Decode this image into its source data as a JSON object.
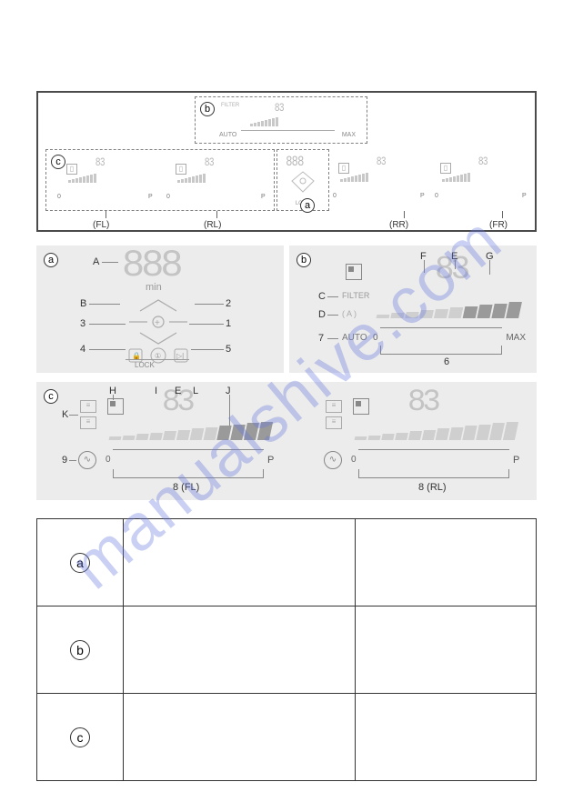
{
  "watermark": "manualshive.com",
  "main_diagram": {
    "labels": {
      "a": "a",
      "b": "b",
      "c": "c"
    },
    "positions": {
      "fl": "(FL)",
      "rl": "(RL)",
      "rr": "(RR)",
      "fr": "(FR)"
    },
    "box_b": {
      "filter": "FILTER",
      "auto": "AUTO",
      "seg": "83",
      "max": "MAX"
    },
    "box_c": {
      "seg1": "83",
      "seg2": "83",
      "p": "P",
      "zero": "0"
    },
    "box_a": {
      "seg": "888",
      "lock": "LOCK"
    },
    "right": {
      "seg1": "83",
      "seg2": "83",
      "p": "P",
      "zero": "0"
    }
  },
  "panel_a": {
    "label": "a",
    "seg": "888",
    "min": "min",
    "lock": "LOCK",
    "callouts": {
      "A": "A",
      "B": "B",
      "1": "1",
      "2": "2",
      "3": "3",
      "4": "4",
      "5": "5"
    }
  },
  "panel_b": {
    "label": "b",
    "seg": "83",
    "filter": "FILTER",
    "auto": "AUTO",
    "max": "MAX",
    "callouts": {
      "C": "C",
      "D": "D",
      "E": "E",
      "F": "F",
      "G": "G",
      "6": "6",
      "7": "7"
    },
    "d_note": "( A )",
    "zero": "0",
    "bars": {
      "count": 10,
      "dark_from": 6,
      "color_light": "#cfcfcf",
      "color_dark": "#9a9a9a",
      "min_h": 4,
      "max_h": 18,
      "width": 14
    }
  },
  "panel_c": {
    "label": "c",
    "seg_l": "83",
    "seg_r": "83",
    "p": "P",
    "zero": "0",
    "sub_fl": "8 (FL)",
    "sub_rl": "8 (RL)",
    "callouts": {
      "H": "H",
      "I": "I",
      "E": "E",
      "L": "L",
      "J": "J",
      "K": "K",
      "9": "9"
    },
    "bars_l": {
      "count": 12,
      "dark_from": 8,
      "color_light": "#cfcfcf",
      "color_dark": "#9a9a9a",
      "min_h": 4,
      "max_h": 20,
      "width": 13
    },
    "bars_r": {
      "count": 12,
      "dark_from": 12,
      "color_light": "#cfcfcf",
      "color_dark": "#9a9a9a",
      "min_h": 4,
      "max_h": 20,
      "width": 13
    }
  },
  "table": {
    "rows": [
      "a",
      "b",
      "c"
    ]
  },
  "colors": {
    "panel_bg": "#ececec",
    "border": "#4a4a4a",
    "seg_gray": "#c4c4c4"
  }
}
